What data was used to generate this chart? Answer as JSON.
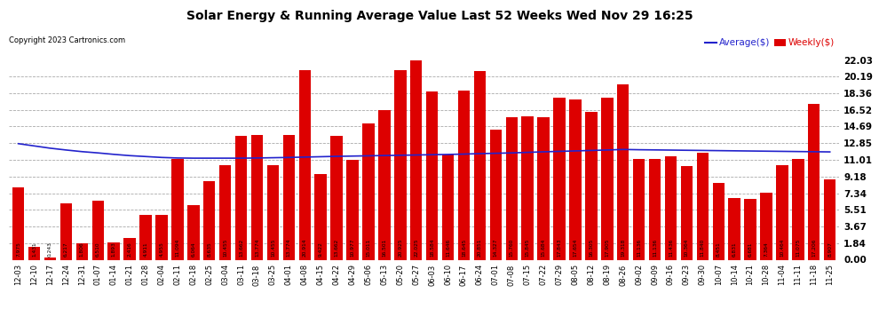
{
  "title": "Solar Energy & Running Average Value Last 52 Weeks Wed Nov 29 16:25",
  "copyright": "Copyright 2023 Cartronics.com",
  "bar_color": "#dd0000",
  "avg_line_color": "#2222cc",
  "background_color": "#ffffff",
  "plot_bg_color": "#ffffff",
  "grid_color": "#aaaaaa",
  "ylim": [
    0.0,
    22.03
  ],
  "yticks": [
    0.0,
    1.84,
    3.67,
    5.51,
    7.34,
    9.18,
    11.01,
    12.85,
    14.69,
    16.52,
    18.36,
    20.19,
    22.03
  ],
  "labels": [
    "12-03",
    "12-10",
    "12-17",
    "12-24",
    "12-31",
    "01-07",
    "01-14",
    "01-21",
    "01-28",
    "02-04",
    "02-11",
    "02-18",
    "02-25",
    "03-04",
    "03-11",
    "03-18",
    "03-25",
    "04-01",
    "04-08",
    "04-15",
    "04-22",
    "04-29",
    "05-06",
    "05-13",
    "05-20",
    "05-27",
    "06-03",
    "06-10",
    "06-17",
    "06-24",
    "07-01",
    "07-08",
    "07-15",
    "07-22",
    "07-29",
    "08-05",
    "08-12",
    "08-19",
    "08-26",
    "09-02",
    "09-09",
    "09-16",
    "09-23",
    "09-30",
    "10-07",
    "10-14",
    "10-21",
    "10-28",
    "11-04",
    "11-11",
    "11-18",
    "11-25"
  ],
  "weekly_values": [
    7.975,
    1.431,
    0.243,
    6.217,
    1.806,
    6.51,
    1.893,
    2.416,
    4.911,
    4.955,
    11.094,
    6.064,
    8.635,
    10.455,
    13.662,
    13.774,
    10.455,
    13.774,
    20.914,
    9.422,
    13.662,
    10.977,
    15.011,
    16.501,
    20.925,
    22.025,
    18.584,
    11.646,
    18.645,
    20.851,
    14.327,
    15.76,
    15.845,
    15.684,
    17.843,
    17.654,
    16.305,
    17.905,
    19.318,
    11.136,
    11.136,
    11.436,
    10.364,
    11.84,
    8.451,
    6.831,
    6.681,
    7.364,
    10.464,
    11.075,
    17.206,
    8.907
  ],
  "avg_values": [
    12.8,
    12.55,
    12.3,
    12.1,
    11.92,
    11.78,
    11.62,
    11.48,
    11.38,
    11.28,
    11.22,
    11.2,
    11.2,
    11.2,
    11.2,
    11.22,
    11.25,
    11.28,
    11.32,
    11.36,
    11.4,
    11.43,
    11.46,
    11.49,
    11.52,
    11.55,
    11.58,
    11.61,
    11.65,
    11.7,
    11.74,
    11.78,
    11.84,
    11.9,
    11.95,
    12.0,
    12.05,
    12.1,
    12.16,
    12.13,
    12.11,
    12.09,
    12.07,
    12.05,
    12.03,
    12.01,
    11.99,
    11.97,
    11.95,
    11.93,
    11.91,
    11.89
  ],
  "legend_avg_label": "Average($)",
  "legend_weekly_label": "Weekly($)",
  "legend_avg_color": "#2222cc",
  "legend_weekly_color": "#dd0000"
}
